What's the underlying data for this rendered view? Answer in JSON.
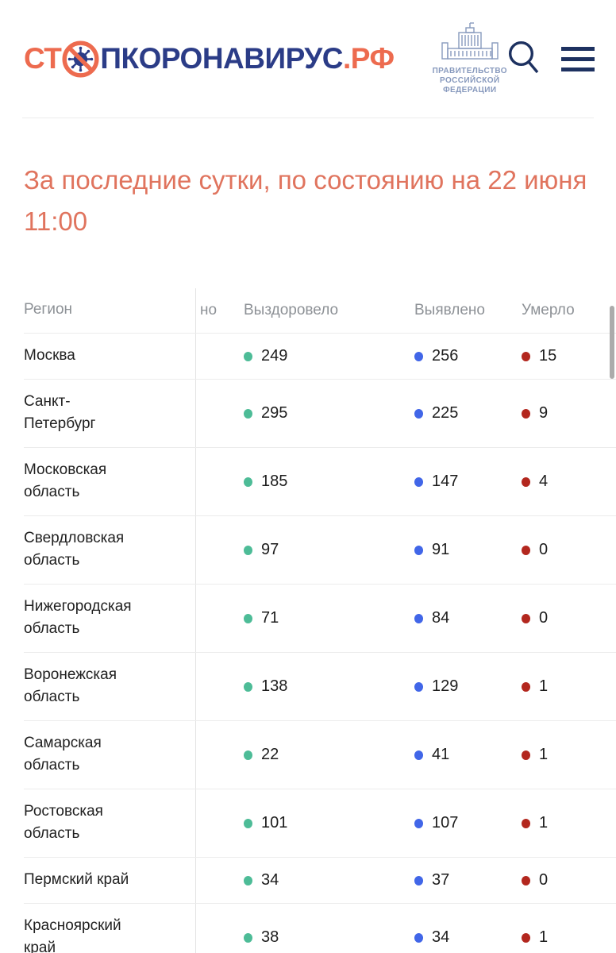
{
  "header": {
    "logo": {
      "prefix": "СТ",
      "name": "ПКОРОНАВИРУС",
      "domain": ".РФ"
    },
    "government": {
      "line1": "ПРАВИТЕЛЬСТВО",
      "line2": "РОССИЙСКОЙ",
      "line3": "ФЕДЕРАЦИИ"
    },
    "icons": [
      "virus-no-sign-icon",
      "government-building-icon",
      "search-icon",
      "menu-icon"
    ]
  },
  "heading": {
    "title": "За последние сутки, по состоянию на 22 июня 11:00"
  },
  "table": {
    "columns": {
      "region": "Регион",
      "confirmed_partial": "но",
      "recovered": "Выздоровело",
      "detected": "Выявлено",
      "died": "Умерло"
    },
    "rows": [
      {
        "region": "Москва",
        "recovered": "249",
        "detected": "256",
        "died": "15"
      },
      {
        "region": "Санкт-Петербург",
        "recovered": "295",
        "detected": "225",
        "died": "9"
      },
      {
        "region": "Московская область",
        "recovered": "185",
        "detected": "147",
        "died": "4"
      },
      {
        "region": "Свердловская область",
        "recovered": "97",
        "detected": "91",
        "died": "0"
      },
      {
        "region": "Нижегородская область",
        "recovered": "71",
        "detected": "84",
        "died": "0"
      },
      {
        "region": "Воронежская область",
        "recovered": "138",
        "detected": "129",
        "died": "1"
      },
      {
        "region": "Самарская область",
        "recovered": "22",
        "detected": "41",
        "died": "1"
      },
      {
        "region": "Ростовская область",
        "recovered": "101",
        "detected": "107",
        "died": "1"
      },
      {
        "region": "Пермский край",
        "recovered": "34",
        "detected": "37",
        "died": "0"
      },
      {
        "region": "Красноярский край",
        "recovered": "38",
        "detected": "34",
        "died": "1"
      }
    ],
    "colors": {
      "recovered_dot": "#4dbc97",
      "detected_dot": "#4166e8",
      "died_dot": "#b3271e"
    }
  },
  "brand_colors": {
    "coral": "#ed6b4f",
    "navy": "#2b3c87",
    "icon_navy": "#1d3160",
    "gov_blue": "#8799bd",
    "title_coral": "#e0745e"
  }
}
